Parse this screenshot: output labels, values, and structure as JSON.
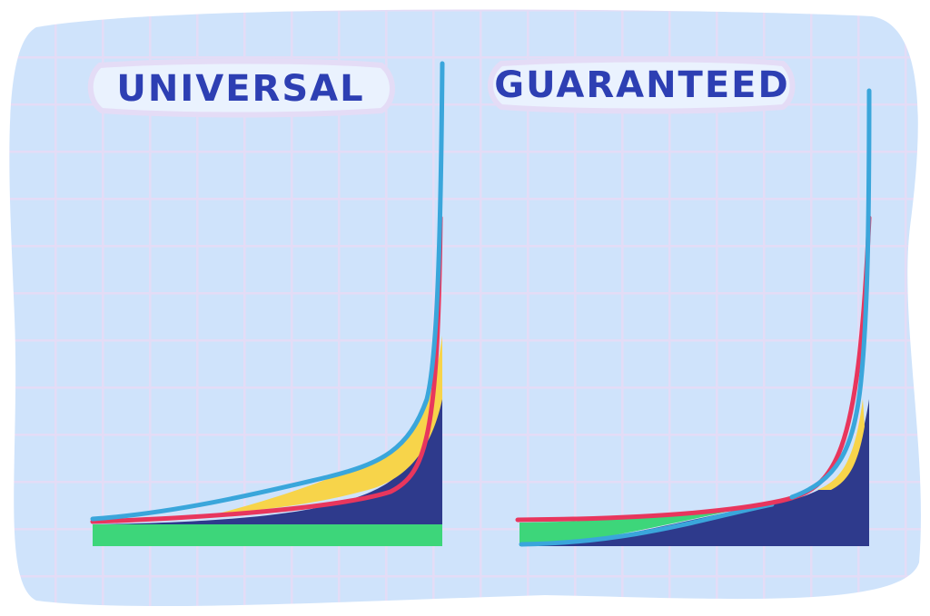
{
  "panels": [
    {
      "title": "UNIVERSAL"
    },
    {
      "title": "GUARANTEED"
    }
  ]
}
